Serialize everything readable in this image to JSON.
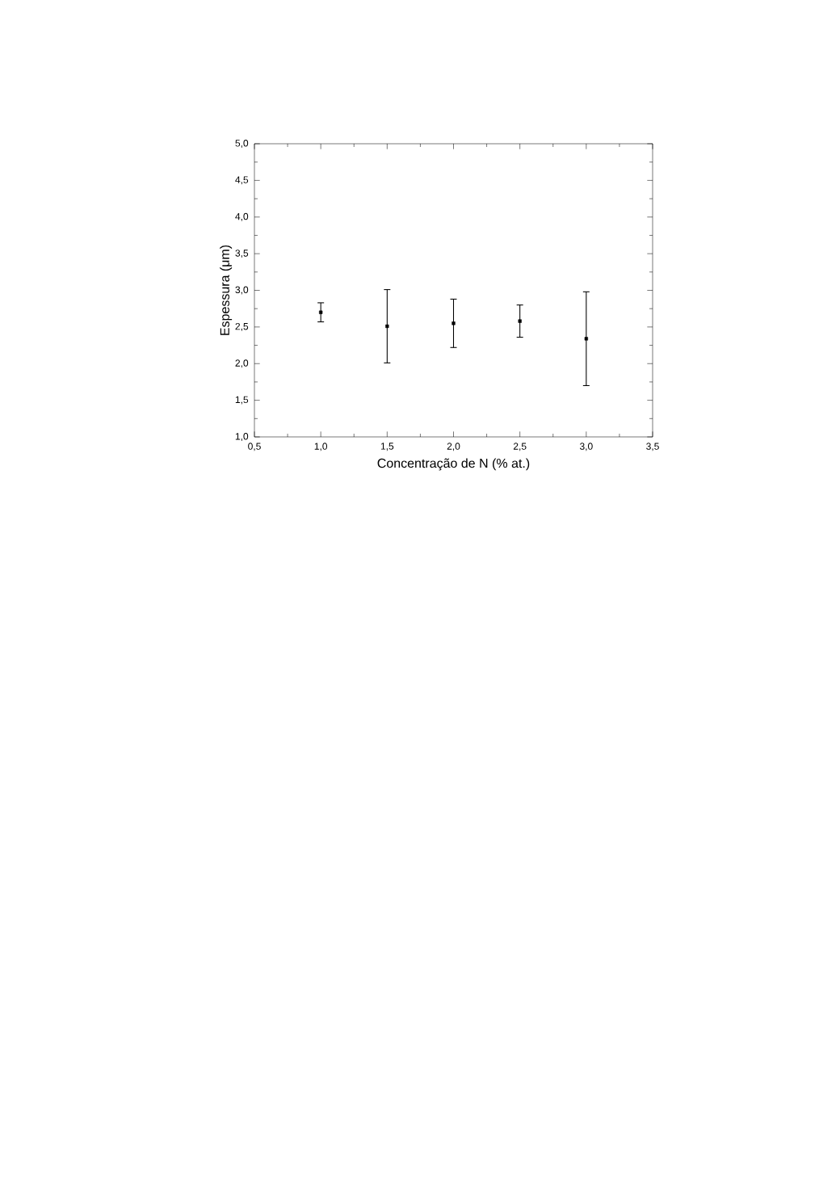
{
  "chart_data": {
    "type": "scatter",
    "xlabel": "Concentração de N (% at.)",
    "ylabel": "Espessura (μm)",
    "x": [
      1.0,
      1.5,
      2.0,
      2.5,
      3.0
    ],
    "values": [
      2.7,
      2.51,
      2.55,
      2.58,
      2.34
    ],
    "errors": [
      0.13,
      0.5,
      0.33,
      0.22,
      0.64
    ],
    "color": "#000000",
    "marker": "square",
    "xlim": [
      0.5,
      3.5
    ],
    "ylim": [
      1.0,
      5.0
    ],
    "xticks": [
      {
        "value": 0.5,
        "label": "0,5"
      },
      {
        "value": 1.0,
        "label": "1,0"
      },
      {
        "value": 1.5,
        "label": "1,5"
      },
      {
        "value": 2.0,
        "label": "2,0"
      },
      {
        "value": 2.5,
        "label": "2,5"
      },
      {
        "value": 3.0,
        "label": "3,0"
      },
      {
        "value": 3.5,
        "label": "3,5"
      }
    ],
    "yticks": [
      {
        "value": 1.0,
        "label": "1,0"
      },
      {
        "value": 1.5,
        "label": "1,5"
      },
      {
        "value": 2.0,
        "label": "2,0"
      },
      {
        "value": 2.5,
        "label": "2,5"
      },
      {
        "value": 3.0,
        "label": "3,0"
      },
      {
        "value": 3.5,
        "label": "3,5"
      },
      {
        "value": 4.0,
        "label": "4,0"
      },
      {
        "value": 4.5,
        "label": "4,5"
      },
      {
        "value": 5.0,
        "label": "5,0"
      }
    ],
    "grid": false
  }
}
